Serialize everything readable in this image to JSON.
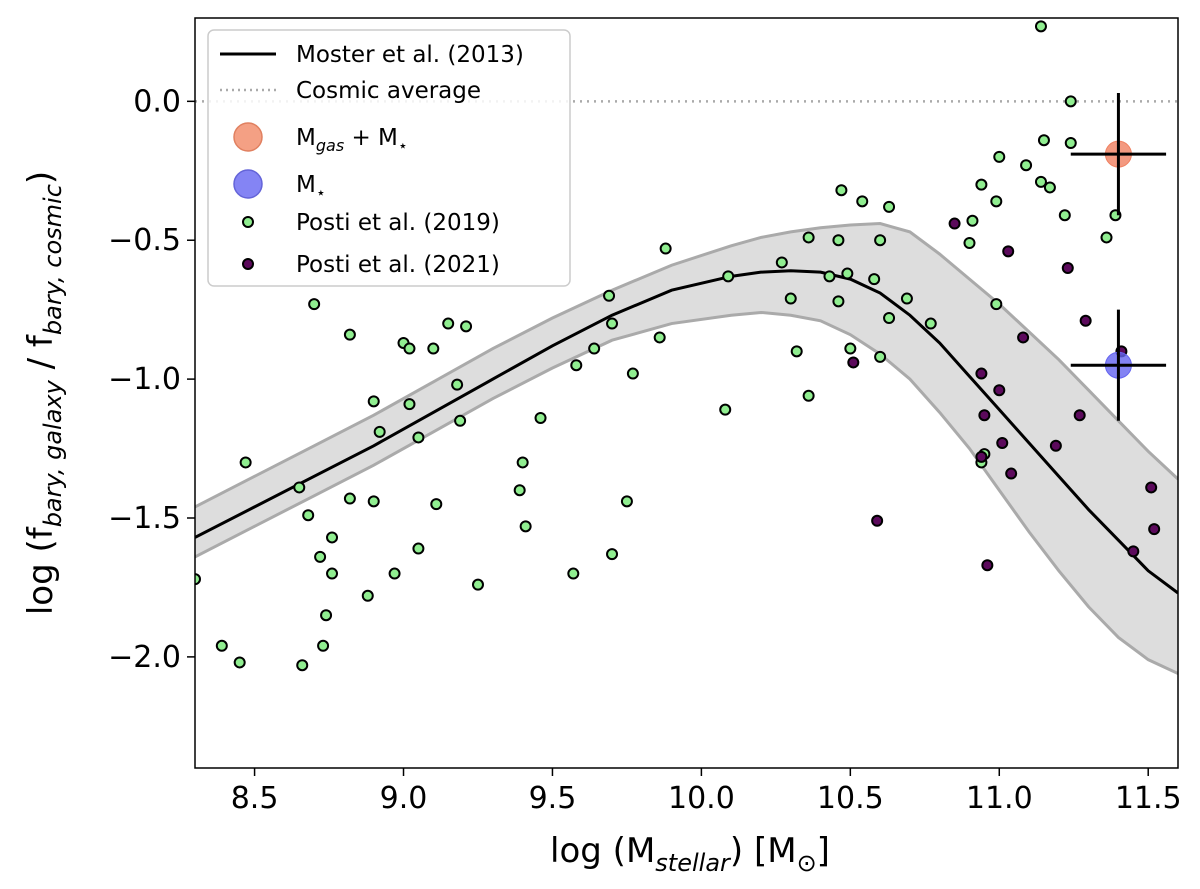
{
  "chart_data": {
    "type": "scatter",
    "xlabel": {
      "main": "log (M",
      "sub": "stellar",
      "tail": ") [M",
      "sun": "⊙",
      "close": "]"
    },
    "ylabel": {
      "pre": "log (f",
      "sub1": "bary, galaxy",
      "mid": " / f",
      "sub2": "bary, cosmic",
      "close": ")"
    },
    "xlim": [
      8.3,
      11.6
    ],
    "ylim": [
      -2.4,
      0.3
    ],
    "xticks": [
      8.5,
      9.0,
      9.5,
      10.0,
      10.5,
      11.0,
      11.5
    ],
    "xtick_labels": [
      "8.5",
      "9.0",
      "9.5",
      "10.0",
      "10.5",
      "11.0",
      "11.5"
    ],
    "yticks": [
      0.0,
      -0.5,
      -1.0,
      -1.5,
      -2.0
    ],
    "ytick_labels": [
      "0.0",
      "−0.5",
      "−1.0",
      "−1.5",
      "−2.0"
    ],
    "cosmic_average": {
      "y": 0.0,
      "color": "#aaaaaa"
    },
    "moster_relation": {
      "x": [
        8.3,
        8.5,
        8.7,
        8.9,
        9.1,
        9.3,
        9.5,
        9.7,
        9.9,
        10.1,
        10.2,
        10.3,
        10.4,
        10.5,
        10.6,
        10.7,
        10.8,
        10.9,
        11.0,
        11.1,
        11.2,
        11.3,
        11.4,
        11.5,
        11.6
      ],
      "y": [
        -1.57,
        -1.46,
        -1.35,
        -1.24,
        -1.12,
        -1.0,
        -0.88,
        -0.77,
        -0.68,
        -0.63,
        -0.615,
        -0.61,
        -0.615,
        -0.64,
        -0.69,
        -0.77,
        -0.87,
        -0.99,
        -1.11,
        -1.23,
        -1.35,
        -1.47,
        -1.58,
        -1.69,
        -1.77
      ],
      "lower": [
        -1.64,
        -1.53,
        -1.42,
        -1.31,
        -1.19,
        -1.07,
        -0.96,
        -0.86,
        -0.8,
        -0.77,
        -0.76,
        -0.77,
        -0.79,
        -0.84,
        -0.91,
        -1.0,
        -1.12,
        -1.25,
        -1.4,
        -1.55,
        -1.69,
        -1.82,
        -1.93,
        -2.01,
        -2.06
      ],
      "upper": [
        -1.46,
        -1.35,
        -1.24,
        -1.13,
        -1.01,
        -0.89,
        -0.78,
        -0.68,
        -0.59,
        -0.52,
        -0.49,
        -0.47,
        -0.455,
        -0.445,
        -0.44,
        -0.47,
        -0.55,
        -0.64,
        -0.73,
        -0.83,
        -0.93,
        -1.04,
        -1.15,
        -1.26,
        -1.36
      ]
    },
    "series": [
      {
        "name": "Posti et al. (2019)",
        "color": "#90ee90",
        "points": [
          [
            8.3,
            -1.72
          ],
          [
            8.39,
            -1.96
          ],
          [
            8.45,
            -2.02
          ],
          [
            8.47,
            -1.3
          ],
          [
            8.65,
            -1.39
          ],
          [
            8.66,
            -2.03
          ],
          [
            8.68,
            -1.49
          ],
          [
            8.7,
            -0.73
          ],
          [
            8.72,
            -1.64
          ],
          [
            8.73,
            -1.96
          ],
          [
            8.74,
            -1.85
          ],
          [
            8.76,
            -1.57
          ],
          [
            8.76,
            -1.7
          ],
          [
            8.82,
            -0.84
          ],
          [
            8.82,
            -1.43
          ],
          [
            8.88,
            -1.78
          ],
          [
            8.9,
            -1.08
          ],
          [
            8.9,
            -1.44
          ],
          [
            8.92,
            -1.19
          ],
          [
            8.97,
            -1.7
          ],
          [
            9.0,
            -0.87
          ],
          [
            9.02,
            -0.89
          ],
          [
            9.02,
            -1.09
          ],
          [
            9.05,
            -1.21
          ],
          [
            9.05,
            -1.61
          ],
          [
            9.1,
            -0.89
          ],
          [
            9.11,
            -1.45
          ],
          [
            9.15,
            -0.8
          ],
          [
            9.18,
            -1.02
          ],
          [
            9.19,
            -1.15
          ],
          [
            9.21,
            -0.81
          ],
          [
            9.25,
            -1.74
          ],
          [
            9.39,
            -1.4
          ],
          [
            9.4,
            -1.3
          ],
          [
            9.41,
            -1.53
          ],
          [
            9.46,
            -1.14
          ],
          [
            9.57,
            -1.7
          ],
          [
            9.58,
            -0.95
          ],
          [
            9.64,
            -0.89
          ],
          [
            9.69,
            -0.7
          ],
          [
            9.7,
            -0.8
          ],
          [
            9.7,
            -1.63
          ],
          [
            9.75,
            -1.44
          ],
          [
            9.77,
            -0.98
          ],
          [
            9.86,
            -0.85
          ],
          [
            9.88,
            -0.53
          ],
          [
            10.08,
            -1.11
          ],
          [
            10.09,
            -0.63
          ],
          [
            10.27,
            -0.58
          ],
          [
            10.3,
            -0.71
          ],
          [
            10.32,
            -0.9
          ],
          [
            10.36,
            -0.49
          ],
          [
            10.36,
            -1.06
          ],
          [
            10.43,
            -0.63
          ],
          [
            10.46,
            -0.5
          ],
          [
            10.46,
            -0.72
          ],
          [
            10.47,
            -0.32
          ],
          [
            10.49,
            -0.62
          ],
          [
            10.5,
            -0.89
          ],
          [
            10.54,
            -0.36
          ],
          [
            10.58,
            -0.64
          ],
          [
            10.6,
            -0.5
          ],
          [
            10.6,
            -0.92
          ],
          [
            10.63,
            -0.38
          ],
          [
            10.63,
            -0.78
          ],
          [
            10.69,
            -0.71
          ],
          [
            10.77,
            -0.8
          ],
          [
            10.9,
            -0.51
          ],
          [
            10.91,
            -0.43
          ],
          [
            10.94,
            -0.3
          ],
          [
            10.94,
            -1.3
          ],
          [
            10.95,
            -1.27
          ],
          [
            10.99,
            -0.36
          ],
          [
            10.99,
            -0.73
          ],
          [
            11.0,
            -0.2
          ],
          [
            11.09,
            -0.23
          ],
          [
            11.14,
            -0.29
          ],
          [
            11.14,
            0.27
          ],
          [
            11.15,
            -0.14
          ],
          [
            11.17,
            -0.31
          ],
          [
            11.22,
            -0.41
          ],
          [
            11.24,
            -0.15
          ],
          [
            11.24,
            0.0
          ],
          [
            11.36,
            -0.49
          ],
          [
            11.39,
            -0.41
          ]
        ]
      },
      {
        "name": "Posti et al. (2021)",
        "color": "#5c0a5c",
        "points": [
          [
            10.51,
            -0.94
          ],
          [
            10.59,
            -1.51
          ],
          [
            10.85,
            -0.44
          ],
          [
            10.94,
            -0.98
          ],
          [
            10.94,
            -1.28
          ],
          [
            10.95,
            -1.13
          ],
          [
            10.96,
            -1.67
          ],
          [
            11.0,
            -1.04
          ],
          [
            11.01,
            -1.23
          ],
          [
            11.03,
            -0.54
          ],
          [
            11.04,
            -1.34
          ],
          [
            11.08,
            -0.85
          ],
          [
            11.19,
            -1.24
          ],
          [
            11.23,
            -0.6
          ],
          [
            11.27,
            -1.13
          ],
          [
            11.29,
            -0.79
          ],
          [
            11.41,
            -0.9
          ],
          [
            11.45,
            -1.62
          ],
          [
            11.51,
            -1.39
          ],
          [
            11.52,
            -1.54
          ]
        ]
      }
    ],
    "highlight_points": [
      {
        "name": "Mgas + M*",
        "x": 11.4,
        "y": -0.19,
        "xerr": 0.16,
        "yerr": 0.22,
        "color": "#f08060"
      },
      {
        "name": "M*",
        "x": 11.4,
        "y": -0.95,
        "xerr": 0.16,
        "yerr": 0.2,
        "color": "#6464f0"
      }
    ],
    "legend": {
      "placement": "top-left",
      "entries": [
        {
          "type": "line",
          "label": "Moster et al. (2013)"
        },
        {
          "type": "dotted",
          "label": "Cosmic average"
        },
        {
          "type": "big-dot",
          "label_main": "M",
          "label_sub": "gas",
          "label_tail": " + M",
          "label_star": "⋆",
          "color": "#f4a084"
        },
        {
          "type": "big-dot",
          "label_main": "M",
          "label_star": "⋆",
          "color": "#8484f4"
        },
        {
          "type": "small-dot",
          "label": "Posti et al. (2019)",
          "color": "#90ee90"
        },
        {
          "type": "small-dot",
          "label": "Posti et al. (2021)",
          "color": "#5c0a5c"
        }
      ]
    }
  }
}
